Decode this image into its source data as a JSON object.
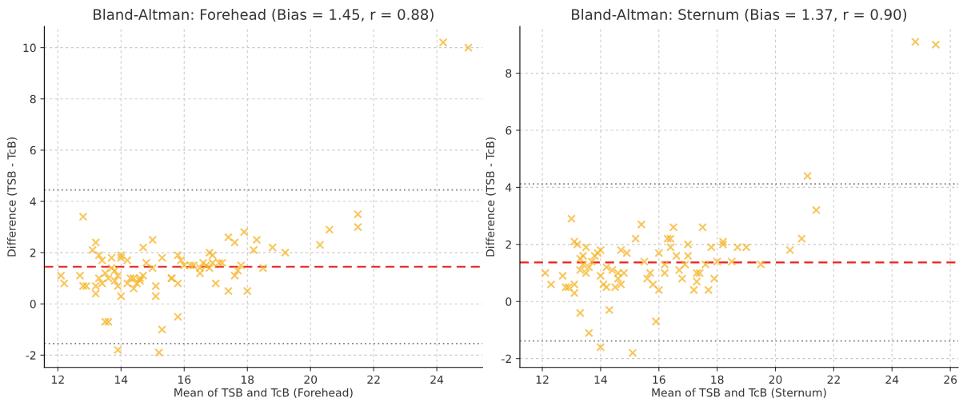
{
  "chart_data": [
    {
      "type": "scatter",
      "title": "Bland-Altman: Forehead (Bias = 1.45, r = 0.88)",
      "xlabel": "Mean of TSB and TcB (Forehead)",
      "ylabel": "Difference (TSB - TcB)",
      "xlim": [
        11.57,
        25.45
      ],
      "ylim": [
        -2.48,
        10.83
      ],
      "xticks": [
        12,
        14,
        16,
        18,
        20,
        22,
        24
      ],
      "yticks": [
        -2,
        0,
        2,
        4,
        6,
        8,
        10
      ],
      "grid": true,
      "marker": "cross",
      "series": [
        {
          "color": "#f5b324",
          "x": [
            12.1,
            12.2,
            12.7,
            12.8,
            12.8,
            12.9,
            13.1,
            13.2,
            13.2,
            13.3,
            13.2,
            13.3,
            13.4,
            13.4,
            13.5,
            13.5,
            13.6,
            13.6,
            13.7,
            13.7,
            13.8,
            13.8,
            13.9,
            13.9,
            14.0,
            14.0,
            14.0,
            13.9,
            14.2,
            14.2,
            14.3,
            14.4,
            14.4,
            14.5,
            14.6,
            14.6,
            14.7,
            14.7,
            14.8,
            15.0,
            15.0,
            15.1,
            15.1,
            15.2,
            15.3,
            15.3,
            15.6,
            15.6,
            15.8,
            15.8,
            15.8,
            15.9,
            16.0,
            16.2,
            16.3,
            16.5,
            16.5,
            16.6,
            16.7,
            16.8,
            16.8,
            16.9,
            16.9,
            17.0,
            17.1,
            17.2,
            17.4,
            17.4,
            17.6,
            17.6,
            17.7,
            17.8,
            17.9,
            18.0,
            18.2,
            18.3,
            18.5,
            18.8,
            19.2,
            20.3,
            20.6,
            21.5,
            21.5,
            24.2,
            25.0
          ],
          "values": [
            1.1,
            0.8,
            1.1,
            3.4,
            0.7,
            0.7,
            2.1,
            2.4,
            0.4,
            1.9,
            0.7,
            1.0,
            1.7,
            0.8,
            1.2,
            -0.7,
            -0.7,
            1.0,
            1.4,
            1.8,
            1.3,
            0.9,
            1.1,
            0.7,
            1.9,
            0.3,
            1.8,
            -1.8,
            1.7,
            0.8,
            1.0,
            1.0,
            0.6,
            0.8,
            1.0,
            0.9,
            1.1,
            2.2,
            1.6,
            1.4,
            2.5,
            0.7,
            0.3,
            -1.9,
            -1.0,
            1.8,
            1.0,
            1.0,
            1.9,
            0.8,
            -0.5,
            1.7,
            1.5,
            1.5,
            1.5,
            1.4,
            1.2,
            1.6,
            1.5,
            1.4,
            2.0,
            1.9,
            1.6,
            0.8,
            1.6,
            1.6,
            0.5,
            2.6,
            2.4,
            1.1,
            1.3,
            1.5,
            2.8,
            0.5,
            2.1,
            2.5,
            1.4,
            2.2,
            2.0,
            2.3,
            2.9,
            3.0,
            3.5,
            10.2,
            10.0
          ]
        }
      ],
      "ref_lines": [
        {
          "axis": "y",
          "value": 1.45,
          "label": null,
          "color": "#e8231e",
          "line_style": "dashed"
        },
        {
          "axis": "y",
          "value": 4.45,
          "label": null,
          "color": "#808080",
          "line_style": "dotted"
        },
        {
          "axis": "y",
          "value": -1.55,
          "label": null,
          "color": "#808080",
          "line_style": "dotted"
        }
      ]
    },
    {
      "type": "scatter",
      "title": "Bland-Altman: Sternum (Bias = 1.37, r = 0.90)",
      "xlabel": "Mean of TSB and TcB (Sternum)",
      "ylabel": "Difference (TSB - TcB)",
      "xlim": [
        11.23,
        26.27
      ],
      "ylim": [
        -2.31,
        9.64
      ],
      "xticks": [
        12,
        14,
        16,
        18,
        20,
        22,
        24,
        26
      ],
      "yticks": [
        -2,
        0,
        2,
        4,
        6,
        8
      ],
      "grid": true,
      "marker": "cross",
      "series": [
        {
          "color": "#f5b324",
          "x": [
            12.1,
            12.3,
            12.7,
            12.8,
            12.9,
            13.0,
            13.1,
            13.1,
            13.1,
            13.2,
            13.3,
            13.3,
            13.3,
            13.4,
            13.4,
            13.5,
            13.5,
            13.6,
            13.6,
            13.7,
            13.8,
            13.9,
            14.0,
            14.0,
            14.0,
            14.1,
            14.2,
            14.2,
            14.3,
            14.4,
            14.5,
            14.6,
            14.6,
            14.7,
            14.7,
            14.8,
            14.9,
            15.1,
            15.2,
            15.4,
            15.5,
            15.6,
            15.7,
            15.8,
            15.9,
            16.0,
            16.0,
            16.2,
            16.2,
            16.3,
            16.4,
            16.4,
            16.5,
            16.6,
            16.7,
            16.8,
            16.9,
            17.0,
            17.0,
            17.2,
            17.3,
            17.3,
            17.4,
            17.5,
            17.6,
            17.7,
            17.8,
            17.9,
            18.0,
            18.2,
            18.2,
            18.5,
            18.7,
            19.0,
            19.5,
            20.5,
            20.9,
            21.1,
            21.4,
            24.8,
            25.5
          ],
          "values": [
            1.0,
            0.6,
            0.9,
            0.5,
            0.5,
            2.9,
            2.1,
            0.3,
            0.6,
            2.0,
            -0.4,
            1.5,
            1.1,
            1.3,
            1.6,
            1.0,
            1.9,
            -1.1,
            1.2,
            1.4,
            1.6,
            1.7,
            1.8,
            0.9,
            -1.6,
            0.6,
            0.5,
            1.2,
            -0.3,
            1.1,
            0.5,
            1.0,
            0.8,
            1.8,
            0.6,
            1.0,
            1.7,
            -1.8,
            2.2,
            2.7,
            1.4,
            0.8,
            1.0,
            0.6,
            -0.7,
            1.7,
            0.4,
            1.3,
            1.0,
            2.2,
            1.9,
            2.2,
            2.6,
            1.6,
            1.1,
            0.8,
            1.3,
            2.0,
            1.6,
            0.4,
            1.0,
            0.7,
            1.0,
            2.6,
            1.3,
            0.4,
            1.9,
            0.8,
            1.4,
            2.1,
            2.0,
            1.4,
            1.9,
            1.9,
            1.3,
            1.8,
            2.2,
            4.4,
            3.2,
            9.1,
            9.0
          ]
        }
      ],
      "ref_lines": [
        {
          "axis": "y",
          "value": 1.37,
          "label": null,
          "color": "#e8231e",
          "line_style": "dashed"
        },
        {
          "axis": "y",
          "value": 4.12,
          "label": null,
          "color": "#808080",
          "line_style": "dotted"
        },
        {
          "axis": "y",
          "value": -1.38,
          "label": null,
          "color": "#808080",
          "line_style": "dotted"
        }
      ]
    }
  ]
}
